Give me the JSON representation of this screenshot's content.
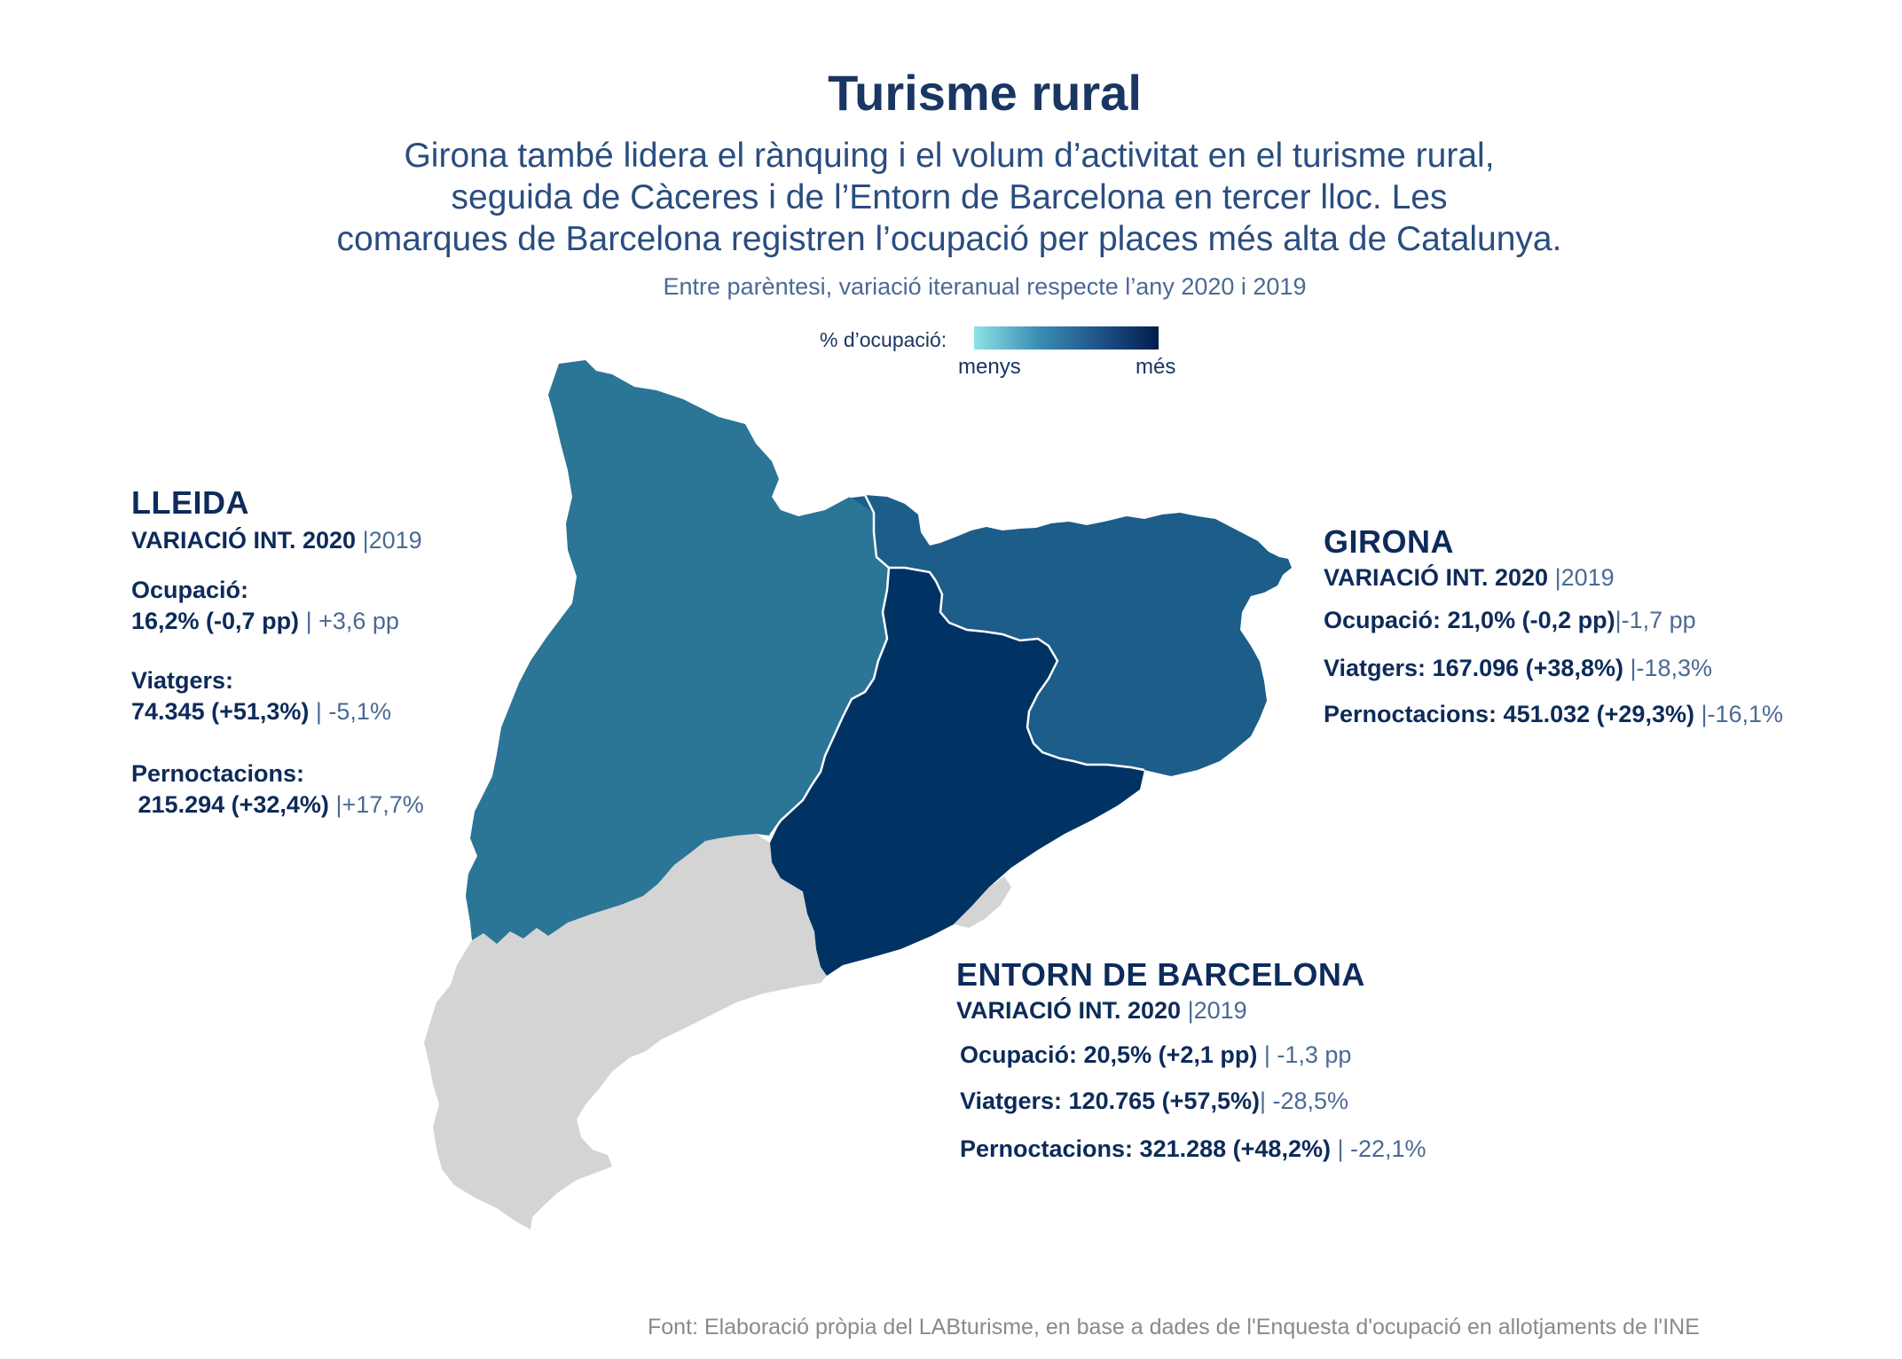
{
  "title": "Turisme rural",
  "subtitle": [
    "Girona també lidera el rànquing i el volum d’activitat en el turisme rural,",
    "seguida de Càceres i de l’Entorn de Barcelona en tercer lloc. Les",
    "comarques de Barcelona registren l’ocupació per places més alta de Catalunya."
  ],
  "note": "Entre parèntesi, variació iteranual respecte l’any 2020 i 2019",
  "legend": {
    "label": "% d’ocupació:",
    "min": "menys",
    "max": "més"
  },
  "colors": {
    "lleida": "#2b7597",
    "girona": "#1c5d8a",
    "barcelona": "#003364",
    "tarragona": "#d4d4d4"
  },
  "regions": {
    "lleida": {
      "name": "LLEIDA",
      "var_main": "VARIACIÓ INT. 2020",
      "var_alt": "|2019",
      "ocupacio_label": "Ocupació:",
      "ocupacio_value": "16,2% (-0,7 pp)",
      "ocupacio_alt": "| +3,6 pp",
      "viatgers_label": "Viatgers:",
      "viatgers_value": "74.345 (+51,3%)",
      "viatgers_alt": "| -5,1%",
      "pernoctacions_label": "Pernoctacions:",
      "pernoctacions_value": "215.294 (+32,4%)",
      "pernoctacions_alt": "|+17,7%"
    },
    "girona": {
      "name": "GIRONA",
      "var_main": "VARIACIÓ INT. 2020",
      "var_alt": "|2019",
      "ocupacio_value": "Ocupació: 21,0% (-0,2 pp)",
      "ocupacio_alt": "|-1,7 pp",
      "viatgers_value": "Viatgers: 167.096 (+38,8%)",
      "viatgers_alt": "|-18,3%",
      "pernoctacions_value": "Pernoctacions: 451.032 (+29,3%)",
      "pernoctacions_alt": "|-16,1%"
    },
    "barcelona": {
      "name": "ENTORN DE BARCELONA",
      "var_main": "VARIACIÓ INT. 2020",
      "var_alt": "|2019",
      "ocupacio_value": "Ocupació: 20,5% (+2,1 pp)",
      "ocupacio_alt": "| -1,3 pp",
      "viatgers_value": "Viatgers: 120.765 (+57,5%)",
      "viatgers_alt": "| -28,5%",
      "pernoctacions_value": "Pernoctacions: 321.288 (+48,2%)",
      "pernoctacions_alt": "| -22,1%"
    }
  },
  "source": "Font: Elaboració pròpia del LABturisme, en base a dades de l'Enquesta d'ocupació en allotjaments de l'INE"
}
